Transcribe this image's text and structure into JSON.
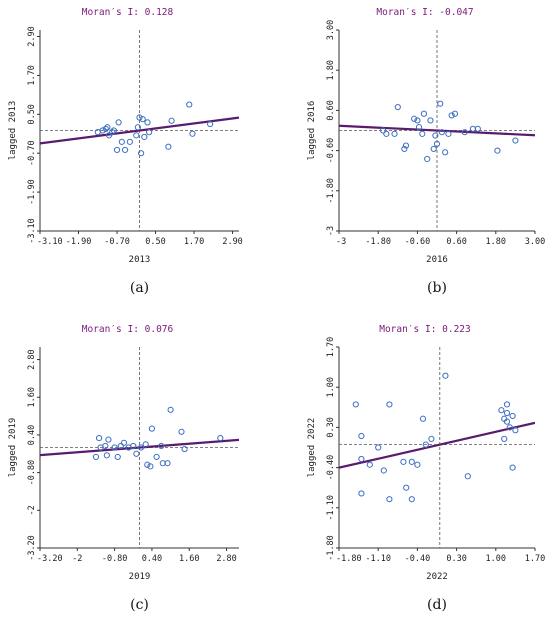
{
  "chart_data": [
    {
      "type": "scatter",
      "title": "Moran′s I: 0.128",
      "xlabel": "2013",
      "ylabel": "lagged 2013",
      "caption": "(a)",
      "xlim": [
        -3.1,
        3.1
      ],
      "ylim": [
        -3.1,
        3.1
      ],
      "xticks": [
        "-3.10",
        "-1.90",
        "-0.70",
        "0.50",
        "1.70",
        "2.90"
      ],
      "xtick_values": [
        -3.1,
        -1.9,
        -0.7,
        0.5,
        1.7,
        2.9
      ],
      "yticks": [
        "-3.10",
        "-1.90",
        "-0.70",
        "0.50",
        "1.70",
        "2.90"
      ],
      "ytick_values": [
        -3.1,
        -1.9,
        -0.7,
        0.5,
        1.7,
        2.9
      ],
      "slope": 0.128,
      "mean_line_y": 0,
      "points": [
        [
          -1.3,
          -0.05
        ],
        [
          -1.15,
          0.0
        ],
        [
          -1.05,
          0.05
        ],
        [
          -1.0,
          0.1
        ],
        [
          -0.95,
          -0.15
        ],
        [
          -0.85,
          -0.05
        ],
        [
          -0.8,
          0.0
        ],
        [
          -0.7,
          -0.6
        ],
        [
          -0.65,
          0.25
        ],
        [
          -0.55,
          -0.35
        ],
        [
          -0.45,
          -0.6
        ],
        [
          -0.3,
          -0.35
        ],
        [
          -0.1,
          -0.15
        ],
        [
          -0.05,
          0.1
        ],
        [
          0.0,
          0.4
        ],
        [
          0.05,
          -0.7
        ],
        [
          0.1,
          0.35
        ],
        [
          0.15,
          -0.2
        ],
        [
          0.25,
          0.25
        ],
        [
          0.3,
          -0.05
        ],
        [
          0.9,
          -0.5
        ],
        [
          1.0,
          0.3
        ],
        [
          1.55,
          0.8
        ],
        [
          1.65,
          -0.1
        ],
        [
          2.2,
          0.2
        ]
      ]
    },
    {
      "type": "scatter",
      "title": "Moran′s I: -0.047",
      "xlabel": "2016",
      "ylabel": "lagged 2016",
      "caption": "(b)",
      "xlim": [
        -3,
        3
      ],
      "ylim": [
        -3,
        3
      ],
      "xticks": [
        "-3",
        "-1.80",
        "-0.60",
        "0.60",
        "1.80",
        "3.00"
      ],
      "xtick_values": [
        -3,
        -1.8,
        -0.6,
        0.6,
        1.8,
        3.0
      ],
      "yticks": [
        "-3",
        "-1.80",
        "-0.60",
        "0.60",
        "1.80",
        "3.00"
      ],
      "ytick_values": [
        -3,
        -1.8,
        -0.6,
        0.6,
        1.8,
        3.0
      ],
      "slope": -0.047,
      "mean_line_y": 0,
      "points": [
        [
          -1.65,
          0.0
        ],
        [
          -1.55,
          -0.1
        ],
        [
          -1.3,
          -0.1
        ],
        [
          -1.2,
          0.7
        ],
        [
          -1.0,
          -0.55
        ],
        [
          -0.95,
          -0.45
        ],
        [
          -0.7,
          0.35
        ],
        [
          -0.6,
          0.3
        ],
        [
          -0.55,
          0.1
        ],
        [
          -0.45,
          -0.1
        ],
        [
          -0.4,
          0.5
        ],
        [
          -0.3,
          -0.85
        ],
        [
          -0.2,
          0.3
        ],
        [
          -0.1,
          -0.55
        ],
        [
          -0.05,
          -0.15
        ],
        [
          0.0,
          -0.4
        ],
        [
          0.1,
          0.8
        ],
        [
          0.15,
          -0.05
        ],
        [
          0.25,
          -0.65
        ],
        [
          0.35,
          -0.1
        ],
        [
          0.45,
          0.45
        ],
        [
          0.55,
          0.5
        ],
        [
          0.85,
          -0.05
        ],
        [
          1.1,
          0.05
        ],
        [
          1.25,
          0.05
        ],
        [
          1.85,
          -0.6
        ],
        [
          2.4,
          -0.3
        ]
      ]
    },
    {
      "type": "scatter",
      "title": "Moran′s I: 0.076",
      "xlabel": "2019",
      "ylabel": "lagged 2019",
      "caption": "(c)",
      "xlim": [
        -3.2,
        3.2
      ],
      "ylim": [
        -3.2,
        3.2
      ],
      "xticks": [
        "-3.20",
        "-2",
        "-0.80",
        "0.40",
        "1.60",
        "2.80"
      ],
      "xtick_values": [
        -3.2,
        -2,
        -0.8,
        0.4,
        1.6,
        2.8
      ],
      "yticks": [
        "-3.20",
        "-2",
        "-0.80",
        "0.40",
        "1.60",
        "2.80"
      ],
      "ytick_values": [
        -3.2,
        -2,
        -0.8,
        0.4,
        1.6,
        2.8
      ],
      "slope": 0.076,
      "mean_line_y": 0,
      "points": [
        [
          -1.4,
          -0.3
        ],
        [
          -1.3,
          0.3
        ],
        [
          -1.25,
          0.0
        ],
        [
          -1.1,
          0.05
        ],
        [
          -1.05,
          -0.25
        ],
        [
          -1.0,
          0.25
        ],
        [
          -0.8,
          0.0
        ],
        [
          -0.7,
          -0.3
        ],
        [
          -0.6,
          0.05
        ],
        [
          -0.5,
          0.15
        ],
        [
          -0.35,
          0.0
        ],
        [
          -0.2,
          0.05
        ],
        [
          -0.1,
          -0.2
        ],
        [
          0.05,
          0.0
        ],
        [
          0.2,
          0.1
        ],
        [
          0.25,
          -0.55
        ],
        [
          0.35,
          -0.6
        ],
        [
          0.4,
          0.6
        ],
        [
          0.55,
          -0.3
        ],
        [
          0.7,
          0.05
        ],
        [
          0.75,
          -0.5
        ],
        [
          0.9,
          -0.5
        ],
        [
          1.0,
          1.2
        ],
        [
          1.35,
          0.5
        ],
        [
          1.45,
          -0.05
        ],
        [
          2.6,
          0.3
        ]
      ]
    },
    {
      "type": "scatter",
      "title": "Moran′s I: 0.223",
      "xlabel": "2022",
      "ylabel": "lagged 2022",
      "caption": "(d)",
      "xlim": [
        -1.8,
        1.7
      ],
      "ylim": [
        -1.8,
        1.7
      ],
      "xticks": [
        "-1.80",
        "-1.10",
        "-0.40",
        "0.30",
        "1.00",
        "1.70"
      ],
      "xtick_values": [
        -1.8,
        -1.1,
        -0.4,
        0.3,
        1.0,
        1.7
      ],
      "yticks": [
        "-1.80",
        "-1.10",
        "-0.40",
        "0.30",
        "1.00",
        "1.70"
      ],
      "ytick_values": [
        -1.8,
        -1.1,
        -0.4,
        0.3,
        1.0,
        1.7
      ],
      "slope": 0.223,
      "mean_line_y": 0,
      "points": [
        [
          -1.5,
          0.7
        ],
        [
          -1.4,
          -0.25
        ],
        [
          -1.4,
          -0.85
        ],
        [
          -1.4,
          0.15
        ],
        [
          -1.25,
          -0.35
        ],
        [
          -1.1,
          -0.05
        ],
        [
          -1.0,
          -0.45
        ],
        [
          -0.9,
          0.7
        ],
        [
          -0.9,
          -0.95
        ],
        [
          -0.65,
          -0.3
        ],
        [
          -0.6,
          -0.75
        ],
        [
          -0.5,
          -0.95
        ],
        [
          -0.5,
          -0.3
        ],
        [
          -0.4,
          -0.35
        ],
        [
          -0.3,
          0.45
        ],
        [
          -0.25,
          0.0
        ],
        [
          -0.15,
          0.1
        ],
        [
          0.1,
          1.2
        ],
        [
          0.5,
          -0.55
        ],
        [
          1.1,
          0.6
        ],
        [
          1.15,
          0.45
        ],
        [
          1.15,
          0.1
        ],
        [
          1.2,
          0.4
        ],
        [
          1.2,
          0.55
        ],
        [
          1.2,
          0.7
        ],
        [
          1.25,
          0.3
        ],
        [
          1.3,
          0.5
        ],
        [
          1.3,
          -0.4
        ],
        [
          1.35,
          0.25
        ]
      ]
    }
  ]
}
